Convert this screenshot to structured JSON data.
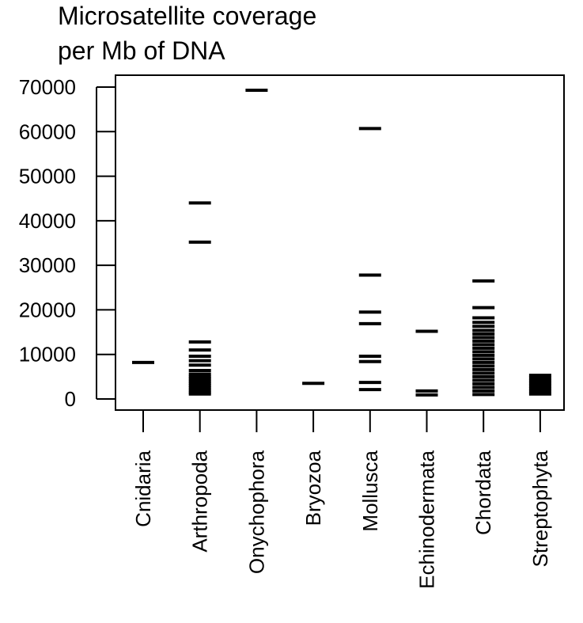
{
  "chart_data": {
    "type": "strip",
    "title_lines": [
      "Microsatellite coverage",
      "per Mb of DNA"
    ],
    "xlabel": "",
    "ylabel": "",
    "ylim": [
      0,
      70000
    ],
    "yticks": [
      0,
      10000,
      20000,
      30000,
      40000,
      50000,
      60000,
      70000
    ],
    "categories": [
      "Cnidaria",
      "Arthropoda",
      "Onychophora",
      "Bryozoa",
      "Mollusca",
      "Echinodermata",
      "Chordata",
      "Streptophyta"
    ],
    "series": [
      {
        "category": "Cnidaria",
        "values": [
          8200
        ]
      },
      {
        "category": "Arthropoda",
        "values": [
          44000,
          35200,
          12800,
          11000,
          9600,
          8600,
          7600,
          6400,
          5600,
          5000,
          4500,
          4000,
          3500,
          3000,
          2500,
          2000,
          1500,
          1100
        ]
      },
      {
        "category": "Onychophora",
        "values": [
          69300
        ]
      },
      {
        "category": "Bryozoa",
        "values": [
          3500
        ]
      },
      {
        "category": "Mollusca",
        "values": [
          60700,
          27800,
          19500,
          16900,
          9600,
          8400,
          3700,
          2100
        ]
      },
      {
        "category": "Echinodermata",
        "values": [
          15200,
          1800,
          900
        ]
      },
      {
        "category": "Chordata",
        "values": [
          26500,
          20500,
          18200,
          17200,
          16300,
          15400,
          14600,
          13800,
          13000,
          12200,
          11400,
          10600,
          9800,
          9000,
          8200,
          7400,
          6600,
          5800,
          5000,
          4200,
          3400,
          2600,
          1800,
          1000
        ]
      },
      {
        "category": "Streptophyta",
        "values": [
          5300,
          4700,
          4100,
          3500,
          2900,
          2300,
          1700,
          1100
        ]
      }
    ],
    "grid": false,
    "legend": "none"
  }
}
